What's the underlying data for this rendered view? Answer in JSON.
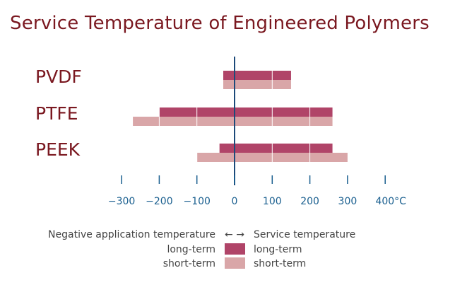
{
  "chart_data": {
    "type": "bar",
    "title": "Service Temperature of Engineered Polymers",
    "categories": [
      "PVDF",
      "PTFE",
      "PEEK"
    ],
    "series": [
      {
        "name": "long-term",
        "values": [
          [
            -30,
            150
          ],
          [
            -200,
            260
          ],
          [
            -40,
            260
          ]
        ]
      },
      {
        "name": "short-term",
        "values": [
          [
            -30,
            150
          ],
          [
            -270,
            260
          ],
          [
            -100,
            300
          ]
        ]
      }
    ],
    "xticks": [
      -300,
      -200,
      -100,
      0,
      100,
      200,
      300,
      400
    ],
    "xtick_labels": [
      "−300",
      "−200",
      "−100",
      "0",
      "100",
      "200",
      "300",
      "400"
    ],
    "xunit": "°C",
    "xlim": [
      -300,
      400
    ],
    "legend": {
      "header_left": "Negative application temperature",
      "arrows": "← →",
      "header_right": "Service temperature",
      "long_left": "long-term",
      "long_right": "long-term",
      "short_left": "short-term",
      "short_right": "short-term"
    },
    "colors": {
      "title": "#7a1820",
      "category_label": "#7a1820",
      "long_term": "#b04468",
      "short_term": "#d9a6a8",
      "axis": "#1c4a7a",
      "tick_label": "#1a5f8f",
      "legend_text": "#444444"
    },
    "grid": false,
    "legend_position": "bottom"
  }
}
